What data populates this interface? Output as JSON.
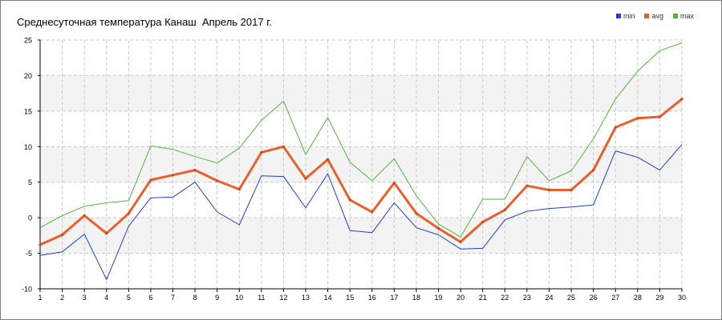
{
  "chart_data": {
    "type": "line",
    "title": "Среднесуточная температура Канаш  Апрель 2017 г.",
    "xlabel": "",
    "ylabel": "",
    "x": [
      1,
      2,
      3,
      4,
      5,
      6,
      7,
      8,
      9,
      10,
      11,
      12,
      13,
      14,
      15,
      16,
      17,
      18,
      19,
      20,
      21,
      22,
      23,
      24,
      25,
      26,
      27,
      28,
      29,
      30
    ],
    "ylim": [
      -10,
      25
    ],
    "y_ticks": [
      -10,
      -5,
      0,
      5,
      10,
      15,
      20,
      25
    ],
    "grid": true,
    "legend_position": "top-right",
    "series": [
      {
        "name": "min",
        "color": "#1f3fd6",
        "values": [
          -5.3,
          -4.8,
          -2.3,
          -8.7,
          -1.2,
          2.8,
          2.9,
          5.0,
          0.8,
          -1.0,
          5.9,
          5.8,
          1.4,
          6.2,
          -1.8,
          -2.1,
          2.1,
          -1.4,
          -2.4,
          -4.4,
          -4.3,
          -0.3,
          0.9,
          1.3,
          1.5,
          1.8,
          9.4,
          8.5,
          6.7,
          10.3
        ]
      },
      {
        "name": "avg",
        "color": "#e8602c",
        "values": [
          -3.8,
          -2.4,
          0.3,
          -2.2,
          0.6,
          5.3,
          6.0,
          6.7,
          5.2,
          4.0,
          9.2,
          10.0,
          5.5,
          8.2,
          2.5,
          0.8,
          4.9,
          0.6,
          -1.5,
          -3.4,
          -0.6,
          1.1,
          4.5,
          3.9,
          3.9,
          6.7,
          12.7,
          14.0,
          14.2,
          16.7
        ]
      },
      {
        "name": "max",
        "color": "#55b240",
        "values": [
          -1.4,
          0.3,
          1.6,
          2.1,
          2.4,
          10.1,
          9.6,
          8.6,
          7.7,
          9.8,
          13.7,
          16.4,
          8.9,
          14.1,
          7.8,
          5.2,
          8.3,
          3.1,
          -0.9,
          -2.7,
          2.6,
          2.6,
          8.6,
          5.2,
          6.6,
          11.1,
          16.7,
          20.6,
          23.5,
          24.6
        ]
      }
    ]
  }
}
